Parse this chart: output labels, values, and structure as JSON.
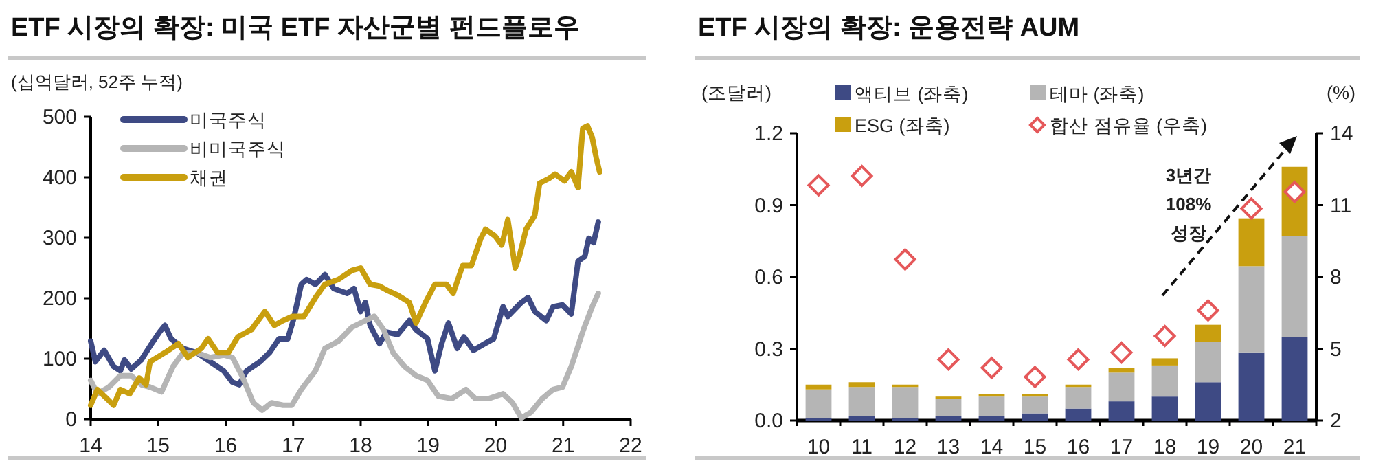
{
  "chart_data": [
    {
      "type": "line",
      "title": "ETF 시장의 확장: 미국 ETF 자산군별 펀드플로우",
      "ylabel": "(십억달러, 52주 누적)",
      "xlim": [
        14,
        22
      ],
      "xticks": [
        14,
        15,
        16,
        17,
        18,
        19,
        20,
        21,
        22
      ],
      "ylim": [
        0,
        500
      ],
      "yticks": [
        0,
        100,
        200,
        300,
        400,
        500
      ],
      "legend": "top left",
      "grid": false,
      "series": [
        {
          "name": "미국주식",
          "color": "#3e4a84",
          "x": [
            14.0,
            14.07,
            14.2,
            14.34,
            14.44,
            14.5,
            14.6,
            14.75,
            14.88,
            15.02,
            15.1,
            15.19,
            15.37,
            15.57,
            15.77,
            15.97,
            16.1,
            16.2,
            16.31,
            16.51,
            16.65,
            16.79,
            16.92,
            17.0,
            17.12,
            17.2,
            17.33,
            17.47,
            17.6,
            17.8,
            17.9,
            18.0,
            18.07,
            18.14,
            18.28,
            18.38,
            18.55,
            18.72,
            18.82,
            18.99,
            19.1,
            19.2,
            19.3,
            19.43,
            19.53,
            19.67,
            19.84,
            19.97,
            20.11,
            20.18,
            20.38,
            20.48,
            20.58,
            20.75,
            20.85,
            20.99,
            21.12,
            21.22,
            21.32,
            21.38,
            21.45,
            21.52
          ],
          "values": [
            129,
            95,
            114,
            87,
            80,
            98,
            83,
            98,
            121,
            144,
            155,
            133,
            117,
            110,
            95,
            80,
            61,
            57,
            80,
            95,
            110,
            133,
            133,
            163,
            223,
            231,
            223,
            239,
            216,
            208,
            216,
            178,
            193,
            155,
            125,
            144,
            140,
            163,
            148,
            133,
            80,
            125,
            159,
            117,
            136,
            114,
            125,
            133,
            186,
            170,
            193,
            201,
            178,
            163,
            186,
            189,
            174,
            261,
            269,
            299,
            292,
            326
          ]
        },
        {
          "name": "비미국주식",
          "color": "#b5b5b5",
          "x": [
            14.0,
            14.1,
            14.27,
            14.44,
            14.6,
            14.75,
            14.88,
            15.05,
            15.22,
            15.37,
            15.57,
            15.77,
            15.97,
            16.1,
            16.24,
            16.41,
            16.54,
            16.68,
            16.85,
            16.98,
            17.12,
            17.33,
            17.47,
            17.67,
            17.87,
            18.07,
            18.2,
            18.34,
            18.48,
            18.65,
            18.82,
            18.99,
            19.15,
            19.35,
            19.56,
            19.7,
            19.9,
            20.11,
            20.25,
            20.38,
            20.52,
            20.69,
            20.85,
            20.99,
            21.12,
            21.3,
            21.43,
            21.52
          ],
          "values": [
            64,
            42,
            53,
            72,
            72,
            57,
            53,
            45,
            87,
            110,
            110,
            102,
            106,
            102,
            72,
            27,
            15,
            27,
            23,
            23,
            49,
            80,
            117,
            129,
            152,
            163,
            170,
            148,
            110,
            87,
            72,
            64,
            38,
            34,
            49,
            34,
            34,
            42,
            27,
            2,
            11,
            34,
            49,
            53,
            87,
            148,
            186,
            208
          ]
        },
        {
          "name": "채권",
          "color": "#c99f0f",
          "x": [
            14.0,
            14.1,
            14.24,
            14.34,
            14.44,
            14.58,
            14.72,
            14.82,
            14.88,
            15.1,
            15.3,
            15.44,
            15.64,
            15.74,
            15.88,
            16.04,
            16.18,
            16.38,
            16.58,
            16.72,
            16.85,
            16.99,
            17.16,
            17.33,
            17.47,
            17.67,
            17.87,
            18.0,
            18.14,
            18.28,
            18.41,
            18.55,
            18.72,
            18.82,
            18.96,
            19.1,
            19.27,
            19.37,
            19.51,
            19.64,
            19.78,
            19.85,
            19.99,
            20.09,
            20.18,
            20.29,
            20.35,
            20.45,
            20.58,
            20.65,
            20.79,
            20.88,
            21.02,
            21.12,
            21.22,
            21.29,
            21.36,
            21.43,
            21.49,
            21.54
          ],
          "values": [
            23,
            49,
            34,
            23,
            49,
            42,
            68,
            57,
            95,
            110,
            125,
            102,
            117,
            133,
            110,
            110,
            136,
            148,
            178,
            155,
            163,
            170,
            170,
            201,
            223,
            231,
            246,
            250,
            223,
            220,
            212,
            205,
            193,
            159,
            193,
            223,
            223,
            208,
            254,
            254,
            299,
            314,
            303,
            288,
            330,
            250,
            269,
            314,
            337,
            390,
            398,
            405,
            394,
            409,
            383,
            481,
            485,
            466,
            432,
            409
          ]
        }
      ]
    },
    {
      "type": "bar",
      "stacked": true,
      "title": "ETF 시장의 확장: 운용전략 AUM",
      "ylabel": "(조달러)",
      "y2label": "(%)",
      "categories": [
        "10",
        "11",
        "12",
        "13",
        "14",
        "15",
        "16",
        "17",
        "18",
        "19",
        "20",
        "21"
      ],
      "ylim": [
        0,
        1.2
      ],
      "yticks": [
        {
          "value": 0,
          "label": "0.0"
        },
        {
          "value": 0.3,
          "label": "0.3"
        },
        {
          "value": 0.6,
          "label": "0.6"
        },
        {
          "value": 0.9,
          "label": "0.9"
        },
        {
          "value": 1.2,
          "label": "1.2"
        }
      ],
      "y2lim": [
        2,
        14
      ],
      "y2ticks": [
        2,
        5,
        8,
        11,
        14
      ],
      "legend": "top",
      "series": [
        {
          "name": "액티브 (좌축)",
          "color": "#3e4a84",
          "values": [
            0.01,
            0.02,
            0.01,
            0.02,
            0.02,
            0.03,
            0.05,
            0.08,
            0.1,
            0.16,
            0.285,
            0.35
          ]
        },
        {
          "name": "테마 (좌축)",
          "color": "#b5b5b5",
          "values": [
            0.12,
            0.12,
            0.13,
            0.07,
            0.08,
            0.07,
            0.09,
            0.12,
            0.13,
            0.17,
            0.36,
            0.42
          ]
        },
        {
          "name": "ESG (좌축)",
          "color": "#c99f0f",
          "values": [
            0.02,
            0.02,
            0.01,
            0.01,
            0.01,
            0.01,
            0.01,
            0.02,
            0.03,
            0.07,
            0.2,
            0.29
          ]
        },
        {
          "name": "합산 점유율 (우축)",
          "color": "#e5585a",
          "type": "scatter",
          "axis": "y2",
          "marker": "diamond",
          "values": [
            11.83,
            12.22,
            8.73,
            4.55,
            4.2,
            3.82,
            4.55,
            4.84,
            5.53,
            6.6,
            10.86,
            11.55
          ]
        }
      ],
      "annotations": [
        "3년간 108% 성장"
      ]
    }
  ]
}
